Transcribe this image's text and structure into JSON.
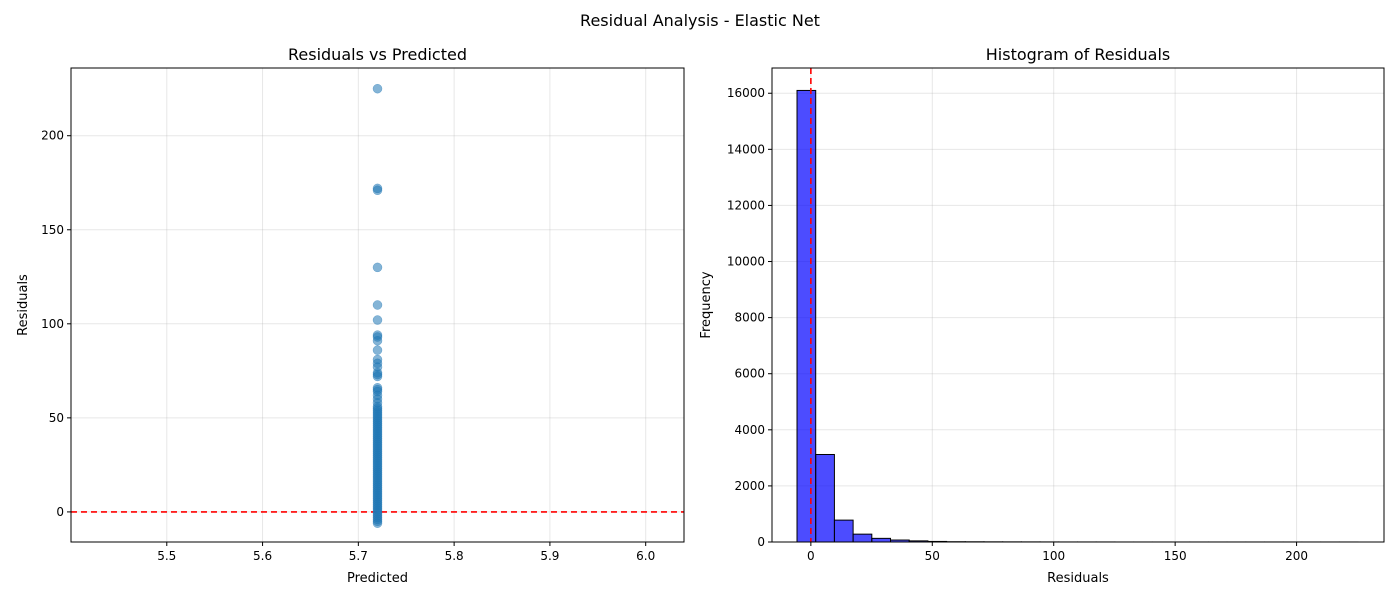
{
  "figure": {
    "suptitle": "Residual Analysis - Elastic Net"
  },
  "colors": {
    "point": "#1f77b4",
    "bar": "#0000ff",
    "bar_edge": "#000000",
    "zero_line": "#ff0000"
  },
  "chart_data": [
    {
      "type": "scatter",
      "title": "Residuals vs Predicted",
      "xlabel": "Predicted",
      "ylabel": "Residuals",
      "xlim": [
        5.4,
        6.04
      ],
      "ylim": [
        -16,
        236
      ],
      "xticks": [
        5.5,
        5.6,
        5.7,
        5.8,
        5.9,
        6.0
      ],
      "xtick_labels": [
        "5.5",
        "5.6",
        "5.7",
        "5.8",
        "5.9",
        "6.0"
      ],
      "yticks": [
        0,
        50,
        100,
        150,
        200
      ],
      "ytick_labels": [
        "0",
        "50",
        "100",
        "150",
        "200"
      ],
      "grid": true,
      "reference_line": {
        "axis": "y",
        "value": 0,
        "style": "dashed"
      },
      "points": {
        "x": 5.72,
        "y": [
          225,
          172,
          171,
          130,
          110,
          102,
          94,
          93,
          91,
          86,
          81,
          79,
          77,
          74,
          73,
          72,
          66,
          65,
          64,
          62,
          60,
          58,
          56,
          55,
          54,
          53,
          52,
          51,
          50,
          49,
          48,
          47,
          46,
          45,
          44,
          43,
          42,
          41,
          40,
          39,
          38,
          37,
          36,
          35,
          34,
          33,
          32,
          31,
          30,
          29,
          28,
          27,
          26,
          25,
          24,
          23,
          22,
          21,
          20,
          19,
          18,
          17,
          16,
          15,
          14,
          13,
          12,
          11,
          10,
          9,
          8,
          7,
          6,
          5,
          4,
          3,
          2,
          1,
          0,
          -1,
          -2,
          -3,
          -4,
          -5,
          -6
        ]
      }
    },
    {
      "type": "bar",
      "title": "Histogram of Residuals",
      "xlabel": "Residuals",
      "ylabel": "Frequency",
      "xlim": [
        -16,
        236
      ],
      "ylim": [
        0,
        16900
      ],
      "xticks": [
        0,
        50,
        100,
        150,
        200
      ],
      "xtick_labels": [
        "0",
        "50",
        "100",
        "150",
        "200"
      ],
      "yticks": [
        0,
        2000,
        4000,
        6000,
        8000,
        10000,
        12000,
        14000,
        16000
      ],
      "ytick_labels": [
        "0",
        "2000",
        "4000",
        "6000",
        "8000",
        "10000",
        "12000",
        "14000",
        "16000"
      ],
      "grid": true,
      "reference_line": {
        "axis": "x",
        "value": 0,
        "style": "dashed"
      },
      "bin_start": -5.7,
      "bin_width": 7.7,
      "values": [
        16100,
        3120,
        780,
        280,
        130,
        70,
        40,
        20,
        10,
        8,
        6,
        5,
        4,
        3,
        2,
        2,
        2,
        1,
        1,
        1,
        1,
        1,
        1,
        1,
        1,
        1,
        1,
        1,
        1,
        1
      ]
    }
  ]
}
